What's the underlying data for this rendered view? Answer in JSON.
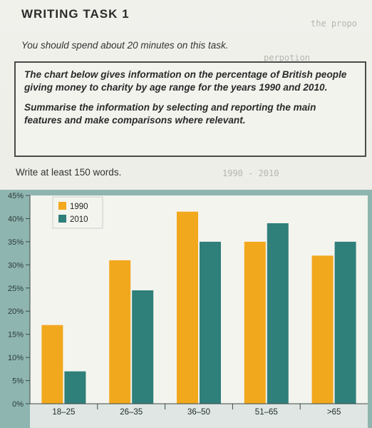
{
  "header": {
    "task_title": "WRITING TASK 1",
    "instruction": "You should spend about 20 minutes on this task."
  },
  "prompt": {
    "paragraph1": "The chart below gives information on the percentage of British people giving money to charity by age range for the years 1990 and 2010.",
    "paragraph2": "Summarise the information by selecting and reporting the main features and make comparisons where relevant."
  },
  "word_count_note": "Write at least 150 words.",
  "handwritten_notes": [
    "the propo",
    "perpotion",
    "1990 - 2010"
  ],
  "colors": {
    "s1990": "#f2a81d",
    "s2010": "#2f7f7a",
    "chart_bg": "#f4f4ef",
    "frame": "#8fb5b0"
  },
  "chart_data": {
    "type": "bar",
    "title": "",
    "xlabel": "",
    "ylabel": "",
    "categories": [
      "18–25",
      "26–35",
      "36–50",
      "51–65",
      ">65"
    ],
    "series": [
      {
        "name": "1990",
        "values": [
          17,
          31,
          41.5,
          35,
          32
        ]
      },
      {
        "name": "2010",
        "values": [
          7,
          24.5,
          35,
          39,
          35
        ]
      }
    ],
    "yticks": [
      "0%",
      "5%",
      "10%",
      "15%",
      "20%",
      "25%",
      "30%",
      "35%",
      "40%",
      "45%"
    ],
    "ylim": [
      0,
      45
    ],
    "legend_position": "top-left",
    "grid": false
  }
}
